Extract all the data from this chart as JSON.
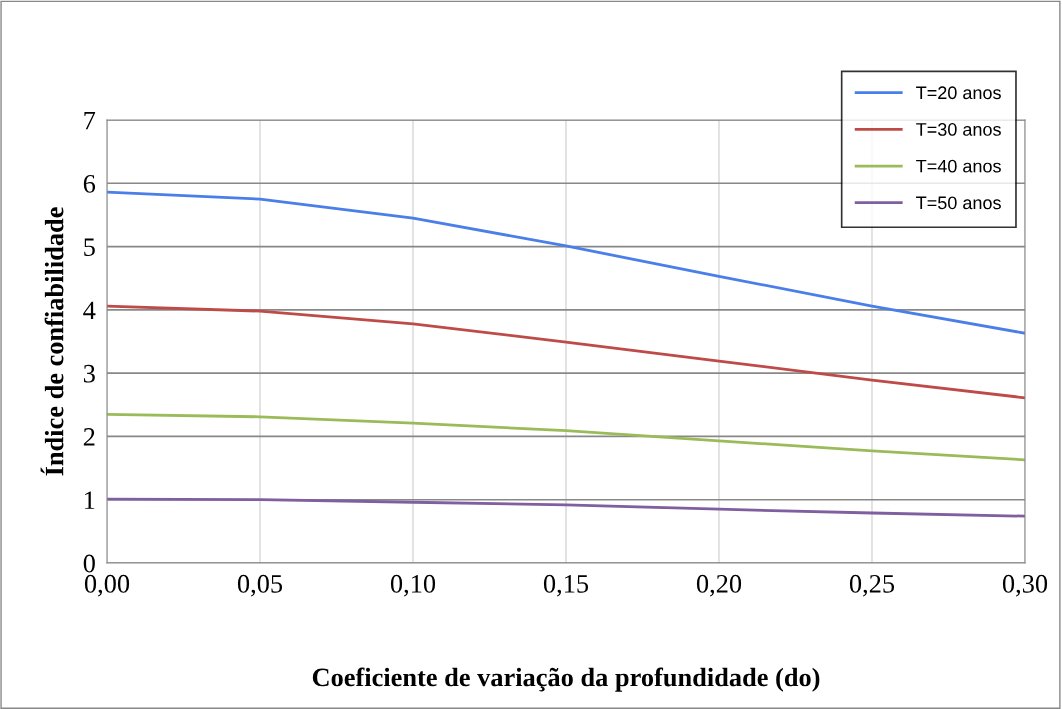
{
  "chart_data": {
    "type": "line",
    "xlabel": "Coeficiente de variação da profundidade (do)",
    "ylabel": "Índice de confiabilidade",
    "x": [
      0,
      0.05,
      0.1,
      0.15,
      0.2,
      0.25,
      0.3
    ],
    "series": [
      {
        "name": "T=20 anos",
        "color": "#4a7ee8",
        "values": [
          5.86,
          5.75,
          5.45,
          5.01,
          4.53,
          4.06,
          3.63
        ]
      },
      {
        "name": "T=30 anos",
        "color": "#be4b48",
        "values": [
          4.06,
          3.98,
          3.78,
          3.49,
          3.19,
          2.89,
          2.61
        ]
      },
      {
        "name": "T=40 anos",
        "color": "#9bbb59",
        "values": [
          2.35,
          2.31,
          2.21,
          2.09,
          1.93,
          1.77,
          1.63
        ]
      },
      {
        "name": "T=50 anos",
        "color": "#7f5f9f",
        "values": [
          1.01,
          1.0,
          0.96,
          0.92,
          0.85,
          0.79,
          0.74
        ]
      }
    ],
    "xlim": [
      0,
      0.3
    ],
    "xticks": [
      {
        "value": 0,
        "label": "0,00"
      },
      {
        "value": 0.05,
        "label": "0,05"
      },
      {
        "value": 0.1,
        "label": "0,10"
      },
      {
        "value": 0.15,
        "label": "0,15"
      },
      {
        "value": 0.2,
        "label": "0,20"
      },
      {
        "value": 0.25,
        "label": "0,25"
      },
      {
        "value": 0.3,
        "label": "0,30"
      }
    ],
    "ylim": [
      0,
      7
    ],
    "yticks": [
      0,
      1,
      2,
      3,
      4,
      5,
      6,
      7
    ],
    "grid": true,
    "legend": "top right",
    "marker": "none",
    "line_style": "solid"
  }
}
